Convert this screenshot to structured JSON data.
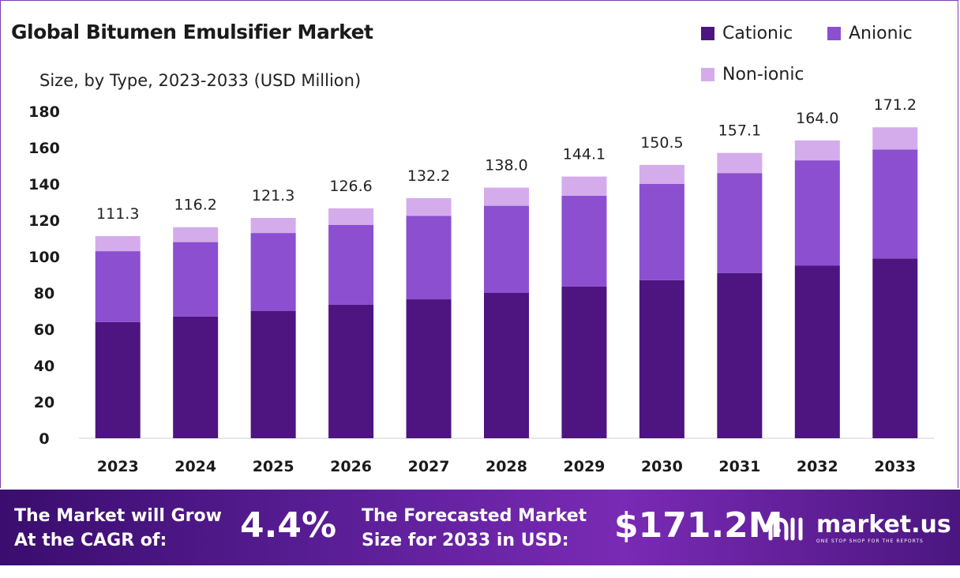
{
  "title": "Global Bitumen Emulsifier Market",
  "subtitle": "Size, by Type, 2023-2033 (USD Million)",
  "legend": [
    {
      "label": "Cationic",
      "color": "#4e1480"
    },
    {
      "label": "Anionic",
      "color": "#8b4fd0"
    },
    {
      "label": "Non-ionic",
      "color": "#d4acec"
    }
  ],
  "chart_data": {
    "type": "bar",
    "stacked": true,
    "categories": [
      "2023",
      "2024",
      "2025",
      "2026",
      "2027",
      "2028",
      "2029",
      "2030",
      "2031",
      "2032",
      "2033"
    ],
    "series": [
      {
        "name": "Cationic",
        "values": [
          64,
          67,
          70,
          73.5,
          76.5,
          80,
          83.5,
          87,
          91,
          95,
          99
        ]
      },
      {
        "name": "Anionic",
        "values": [
          39,
          41,
          43,
          44,
          46,
          48,
          50,
          53,
          55,
          58,
          60
        ]
      },
      {
        "name": "Non-ionic",
        "values": [
          8.3,
          8.2,
          8.3,
          9.1,
          9.7,
          10.0,
          10.6,
          10.5,
          11.1,
          11.0,
          12.2
        ]
      }
    ],
    "totals": [
      "111.3",
      "116.2",
      "121.3",
      "126.6",
      "132.2",
      "138.0",
      "144.1",
      "150.5",
      "157.1",
      "164.0",
      "171.2"
    ],
    "ylim": [
      0,
      180
    ],
    "yticks": [
      "0",
      "20",
      "40",
      "60",
      "80",
      "100",
      "120",
      "140",
      "160",
      "180"
    ],
    "grid": false,
    "legend_position": "top-right"
  },
  "footer": {
    "cagr_line1": "The Market will Grow",
    "cagr_line2": "At the CAGR of:",
    "cagr_value": "4.4%",
    "forecast_line1": "The Forecasted Market",
    "forecast_line2": "Size for 2033 in USD:",
    "forecast_value": "$171.2M",
    "brand_name": "market.us",
    "brand_tagline": "ONE STOP SHOP FOR THE REPORTS"
  }
}
